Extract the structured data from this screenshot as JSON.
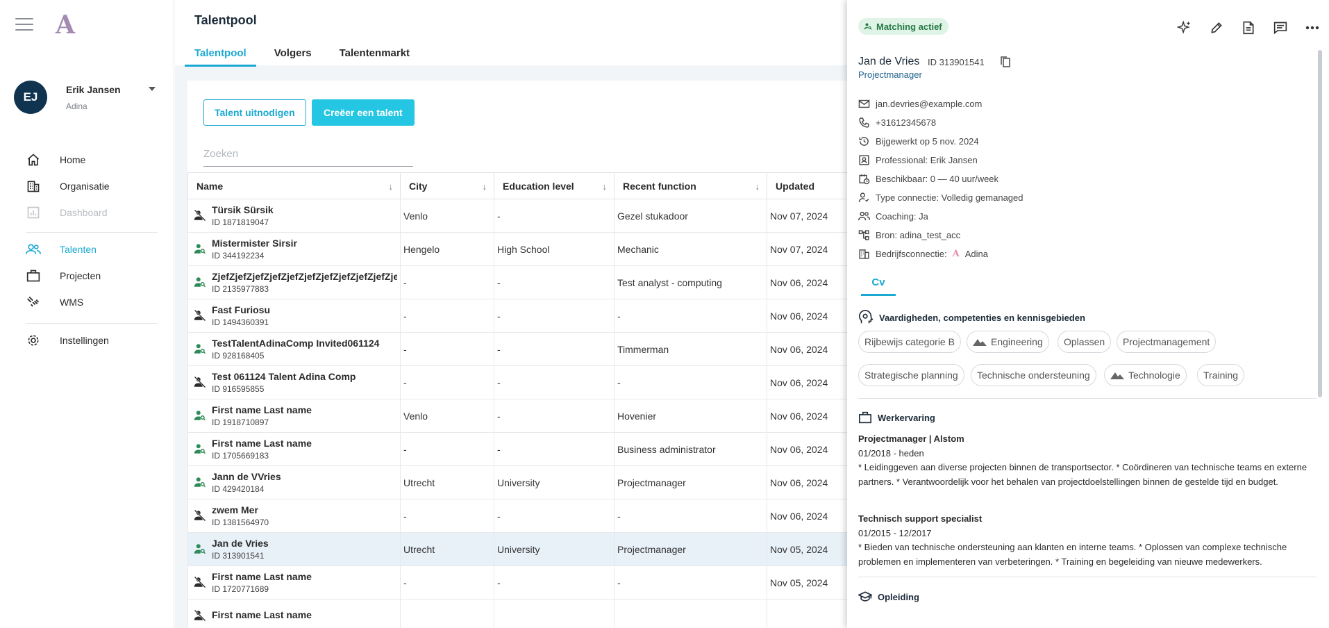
{
  "app": {
    "logo": "A"
  },
  "user": {
    "initials": "EJ",
    "name": "Erik Jansen",
    "org": "Adina"
  },
  "nav": {
    "items": [
      {
        "label": "Home",
        "icon": "home-icon"
      },
      {
        "label": "Organisatie",
        "icon": "building-icon"
      },
      {
        "label": "Dashboard",
        "icon": "chart-icon"
      },
      {
        "label": "Talenten",
        "icon": "people-icon"
      },
      {
        "label": "Projecten",
        "icon": "briefcase-icon"
      },
      {
        "label": "WMS",
        "icon": "handshake-icon"
      },
      {
        "label": "Instellingen",
        "icon": "gear-icon"
      }
    ]
  },
  "header": {
    "title": "Talentpool",
    "tabs": [
      "Talentpool",
      "Volgers",
      "Talentenmarkt"
    ]
  },
  "actions": {
    "invite": "Talent uitnodigen",
    "create": "Creëer een talent"
  },
  "search": {
    "placeholder": "Zoeken",
    "value": ""
  },
  "table": {
    "columns": [
      "Name",
      "City",
      "Education level",
      "Recent function",
      "Updated"
    ],
    "rows": [
      {
        "name": "Türsik Sürsik",
        "id": "ID 1871819047",
        "city": "Venlo",
        "education": "-",
        "function": "Gezel stukadoor",
        "updated": "Nov 07, 2024",
        "matching": false
      },
      {
        "name": "Mistermister Sirsir",
        "id": "ID 344192234",
        "city": "Hengelo",
        "education": "High School",
        "function": "Mechanic",
        "updated": "Nov 07, 2024",
        "matching": true
      },
      {
        "name": "ZjefZjefZjefZjefZjefZjefZjefZjefZjefZjefZjef",
        "id": "ID 2135977883",
        "city": "-",
        "education": "-",
        "function": "Test analyst - computing",
        "updated": "Nov 06, 2024",
        "matching": true
      },
      {
        "name": "Fast Furiosu",
        "id": "ID 1494360391",
        "city": "-",
        "education": "-",
        "function": "-",
        "updated": "Nov 06, 2024",
        "matching": false
      },
      {
        "name": "TestTalentAdinaComp Invited061124",
        "id": "ID 928168405",
        "city": "-",
        "education": "-",
        "function": "Timmerman",
        "updated": "Nov 06, 2024",
        "matching": true
      },
      {
        "name": "Test 061124 Talent Adina Comp",
        "id": "ID 916595855",
        "city": "-",
        "education": "-",
        "function": "-",
        "updated": "Nov 06, 2024",
        "matching": false
      },
      {
        "name": "First name Last name",
        "id": "ID 1918710897",
        "city": "Venlo",
        "education": "-",
        "function": "Hovenier",
        "updated": "Nov 06, 2024",
        "matching": true
      },
      {
        "name": "First name Last name",
        "id": "ID 1705669183",
        "city": "-",
        "education": "-",
        "function": "Business administrator",
        "updated": "Nov 06, 2024",
        "matching": true
      },
      {
        "name": "Jann de VVries",
        "id": "ID 429420184",
        "city": "Utrecht",
        "education": "University",
        "function": "Projectmanager",
        "updated": "Nov 06, 2024",
        "matching": true
      },
      {
        "name": "zwem Mer",
        "id": "ID 1381564970",
        "city": "-",
        "education": "-",
        "function": "-",
        "updated": "Nov 06, 2024",
        "matching": false
      },
      {
        "name": "Jan de Vries",
        "id": "ID 313901541",
        "city": "Utrecht",
        "education": "University",
        "function": "Projectmanager",
        "updated": "Nov 05, 2024",
        "matching": true,
        "selected": true
      },
      {
        "name": "First name Last name",
        "id": "ID 1720771689",
        "city": "-",
        "education": "-",
        "function": "-",
        "updated": "Nov 05, 2024",
        "matching": false
      },
      {
        "name": "First name Last name",
        "id": "",
        "city": "",
        "education": "",
        "function": "",
        "updated": "",
        "matching": false
      }
    ]
  },
  "detail": {
    "badge": "Matching actief",
    "name": "Jan de Vries",
    "id": "ID 313901541",
    "role": "Projectmanager",
    "info": [
      {
        "icon": "mail-icon",
        "text": "jan.devries@example.com"
      },
      {
        "icon": "phone-icon",
        "text": "+31612345678"
      },
      {
        "icon": "history-icon",
        "text": "Bijgewerkt op 5 nov. 2024"
      },
      {
        "icon": "contact-card-icon",
        "text": "Professional: Erik Jansen"
      },
      {
        "icon": "calendar-clock-icon",
        "text": "Beschikbaar: 0 — 40 uur/week"
      },
      {
        "icon": "connection-icon",
        "text": "Type connectie: Volledig gemanaged"
      },
      {
        "icon": "coaching-icon",
        "text": "Coaching: Ja"
      },
      {
        "icon": "tree-icon",
        "text": "Bron: adina_test_acc"
      },
      {
        "icon": "building-icon",
        "text": "Bedrijfsconnectie:",
        "extra": "Adina"
      }
    ],
    "cv_tab": "Cv",
    "skills_title": "Vaardigheden, competenties en kennisgebieden",
    "skills": [
      {
        "label": "Rijbewijs categorie B",
        "mountain": false
      },
      {
        "label": "Engineering",
        "mountain": true
      },
      {
        "label": "Oplassen",
        "mountain": false
      },
      {
        "label": "Projectmanagement",
        "mountain": false
      },
      {
        "label": "Strategische planning",
        "mountain": false
      },
      {
        "label": "Technische ondersteuning",
        "mountain": false
      },
      {
        "label": "Technologie",
        "mountain": true
      },
      {
        "label": "Training",
        "mountain": false
      }
    ],
    "experience_title": "Werkervaring",
    "experience": [
      {
        "title": "Projectmanager | Alstom",
        "dates": "01/2018 - heden",
        "description": "* Leidinggeven aan diverse projecten binnen de transportsector. * Coördineren van technische teams en externe partners. * Verantwoordelijk voor het behalen van projectdoelstellingen binnen de gestelde tijd en budget."
      },
      {
        "title": "Technisch support specialist",
        "dates": "01/2015 - 12/2017",
        "description": "* Bieden van technische ondersteuning aan klanten en interne teams. * Oplossen van complexe technische problemen en implementeren van verbeteringen. * Training en begeleiding van nieuwe medewerkers."
      }
    ],
    "education_title": "Opleiding"
  },
  "colors": {
    "accent": "#1aa9d0",
    "primary_button": "#25c6e4",
    "avatar": "#10334f",
    "matching_green": "#2e8b57",
    "badge_bg": "#dff3e6"
  }
}
